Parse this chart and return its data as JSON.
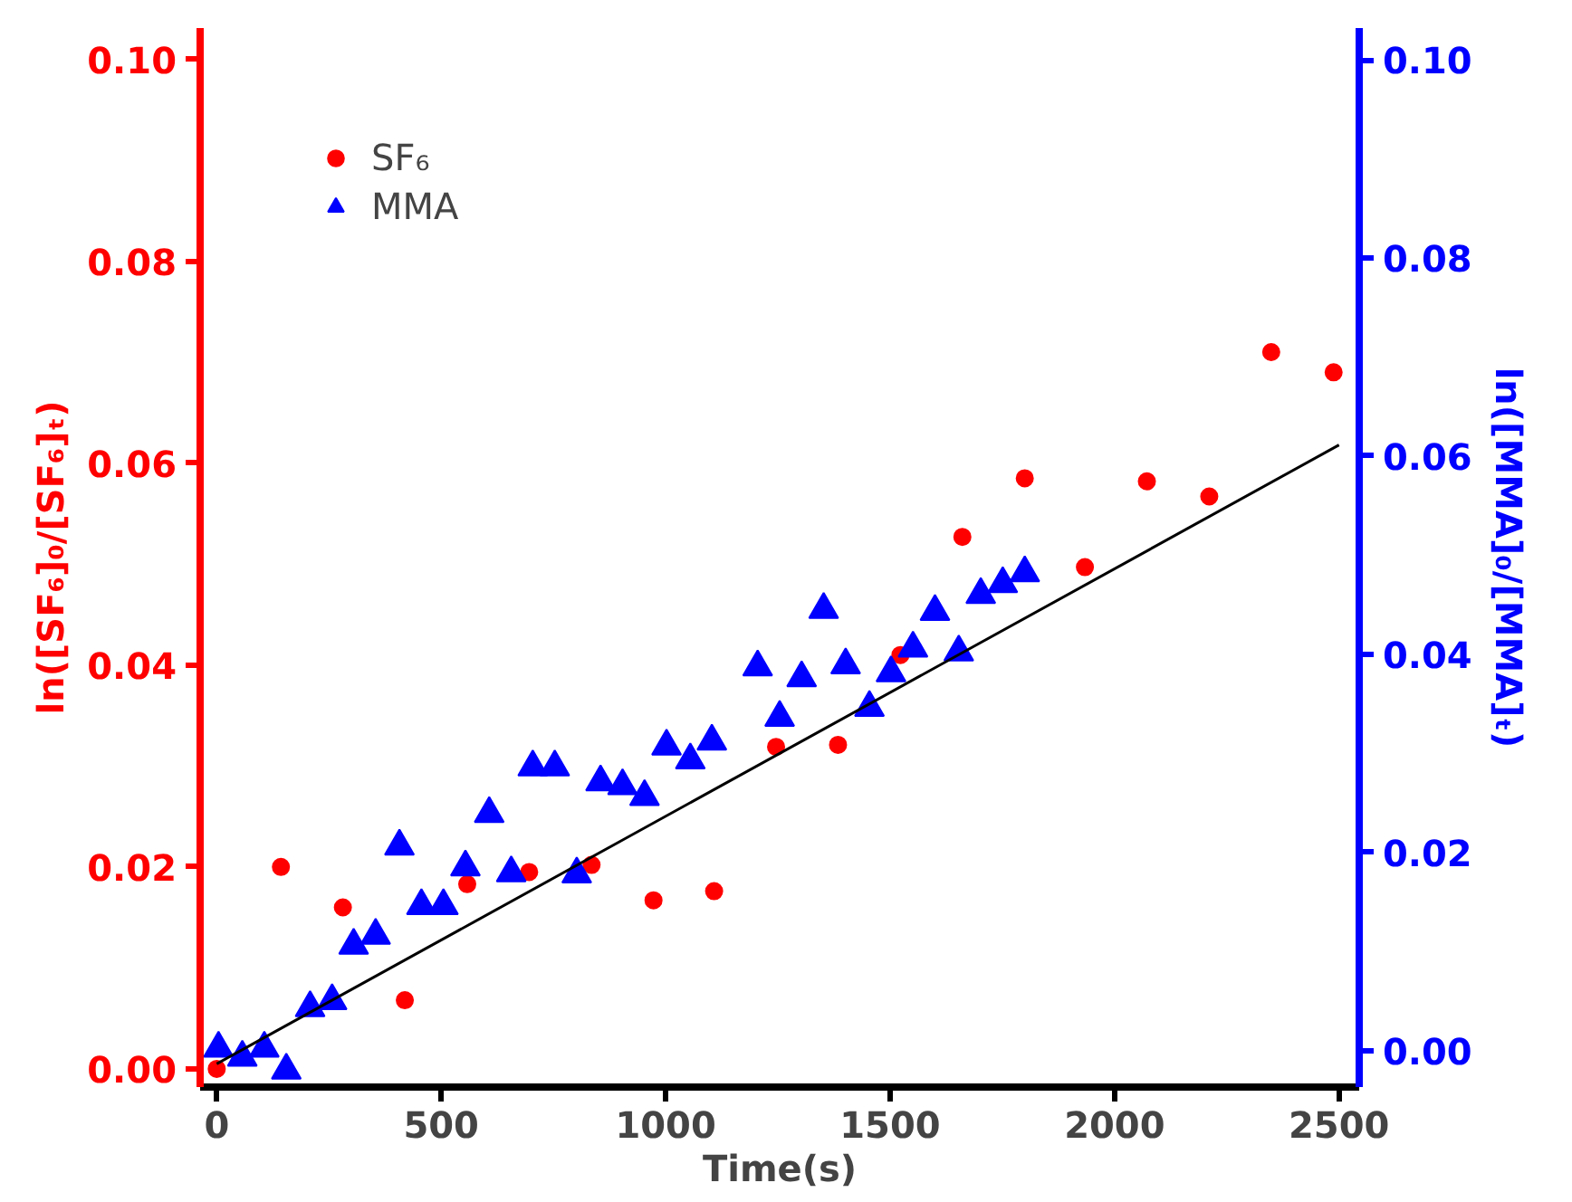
{
  "chart_data": {
    "type": "scatter",
    "xlabel": "Time(s)",
    "ylabel": "ln([SF₆]₀/[SF₆]ₜ)",
    "y2label": "ln([MMA]₀/[MMA]ₜ)",
    "xlim": [
      -37,
      2545
    ],
    "xticks": [
      0,
      500,
      1000,
      1500,
      2000,
      2500
    ],
    "ylim": [
      -0.0018,
      0.1031
    ],
    "yticks": [
      {
        "value": 0,
        "label": "0.00"
      },
      {
        "value": 0.02,
        "label": "0.02"
      },
      {
        "value": 0.04,
        "label": "0.04"
      },
      {
        "value": 0.06,
        "label": "0.06"
      },
      {
        "value": 0.08,
        "label": "0.08"
      },
      {
        "value": 0.1,
        "label": "0.10"
      }
    ],
    "y2lim": [
      -0.0037,
      0.1032
    ],
    "y2ticks": [
      {
        "value": 0,
        "label": "0.00"
      },
      {
        "value": 0.02,
        "label": "0.02"
      },
      {
        "value": 0.04,
        "label": "0.04"
      },
      {
        "value": 0.06,
        "label": "0.06"
      },
      {
        "value": 0.08,
        "label": "0.08"
      },
      {
        "value": 0.1,
        "label": "0.10"
      }
    ],
    "grid": false,
    "legend": "top left",
    "series": [
      {
        "name": "SF₆",
        "marker": "circle",
        "color": "#ff0000",
        "x": [
          0,
          143,
          281,
          419,
          558,
          696,
          835,
          973,
          1108,
          1246,
          1384,
          1523,
          1661,
          1800,
          1934,
          2072,
          2211,
          2349,
          2488
        ],
        "values": [
          0.0,
          0.02,
          0.016,
          0.0068,
          0.0183,
          0.0195,
          0.0202,
          0.0167,
          0.0176,
          0.0319,
          0.0321,
          0.041,
          0.0527,
          0.0585,
          0.0497,
          0.0582,
          0.0567,
          0.071,
          0.069
        ]
      },
      {
        "name": "MMA",
        "marker": "triangle",
        "axis": "y2",
        "color": "#0000ff",
        "x": [
          4,
          57,
          106,
          155,
          208,
          257,
          305,
          354,
          407,
          456,
          505,
          554,
          607,
          656,
          704,
          753,
          802,
          855,
          904,
          953,
          1002,
          1055,
          1103,
          1205,
          1254,
          1303,
          1352,
          1401,
          1454,
          1502,
          1551,
          1600,
          1653,
          1702,
          1751,
          1800
        ],
        "values": [
          0.0002,
          -0.0007,
          0.0002,
          -0.002,
          0.0043,
          0.005,
          0.0106,
          0.0116,
          0.0206,
          0.0146,
          0.0146,
          0.0185,
          0.0239,
          0.0179,
          0.0286,
          0.0286,
          0.0178,
          0.0271,
          0.0267,
          0.0256,
          0.0307,
          0.0293,
          0.0312,
          0.0387,
          0.0336,
          0.0376,
          0.0445,
          0.0389,
          0.0346,
          0.0381,
          0.0406,
          0.0443,
          0.0402,
          0.046,
          0.0471,
          0.0482
        ]
      },
      {
        "type": "line",
        "color": "#000000",
        "x": [
          0,
          2500
        ],
        "values": [
          0.0005,
          0.0618
        ]
      }
    ]
  }
}
